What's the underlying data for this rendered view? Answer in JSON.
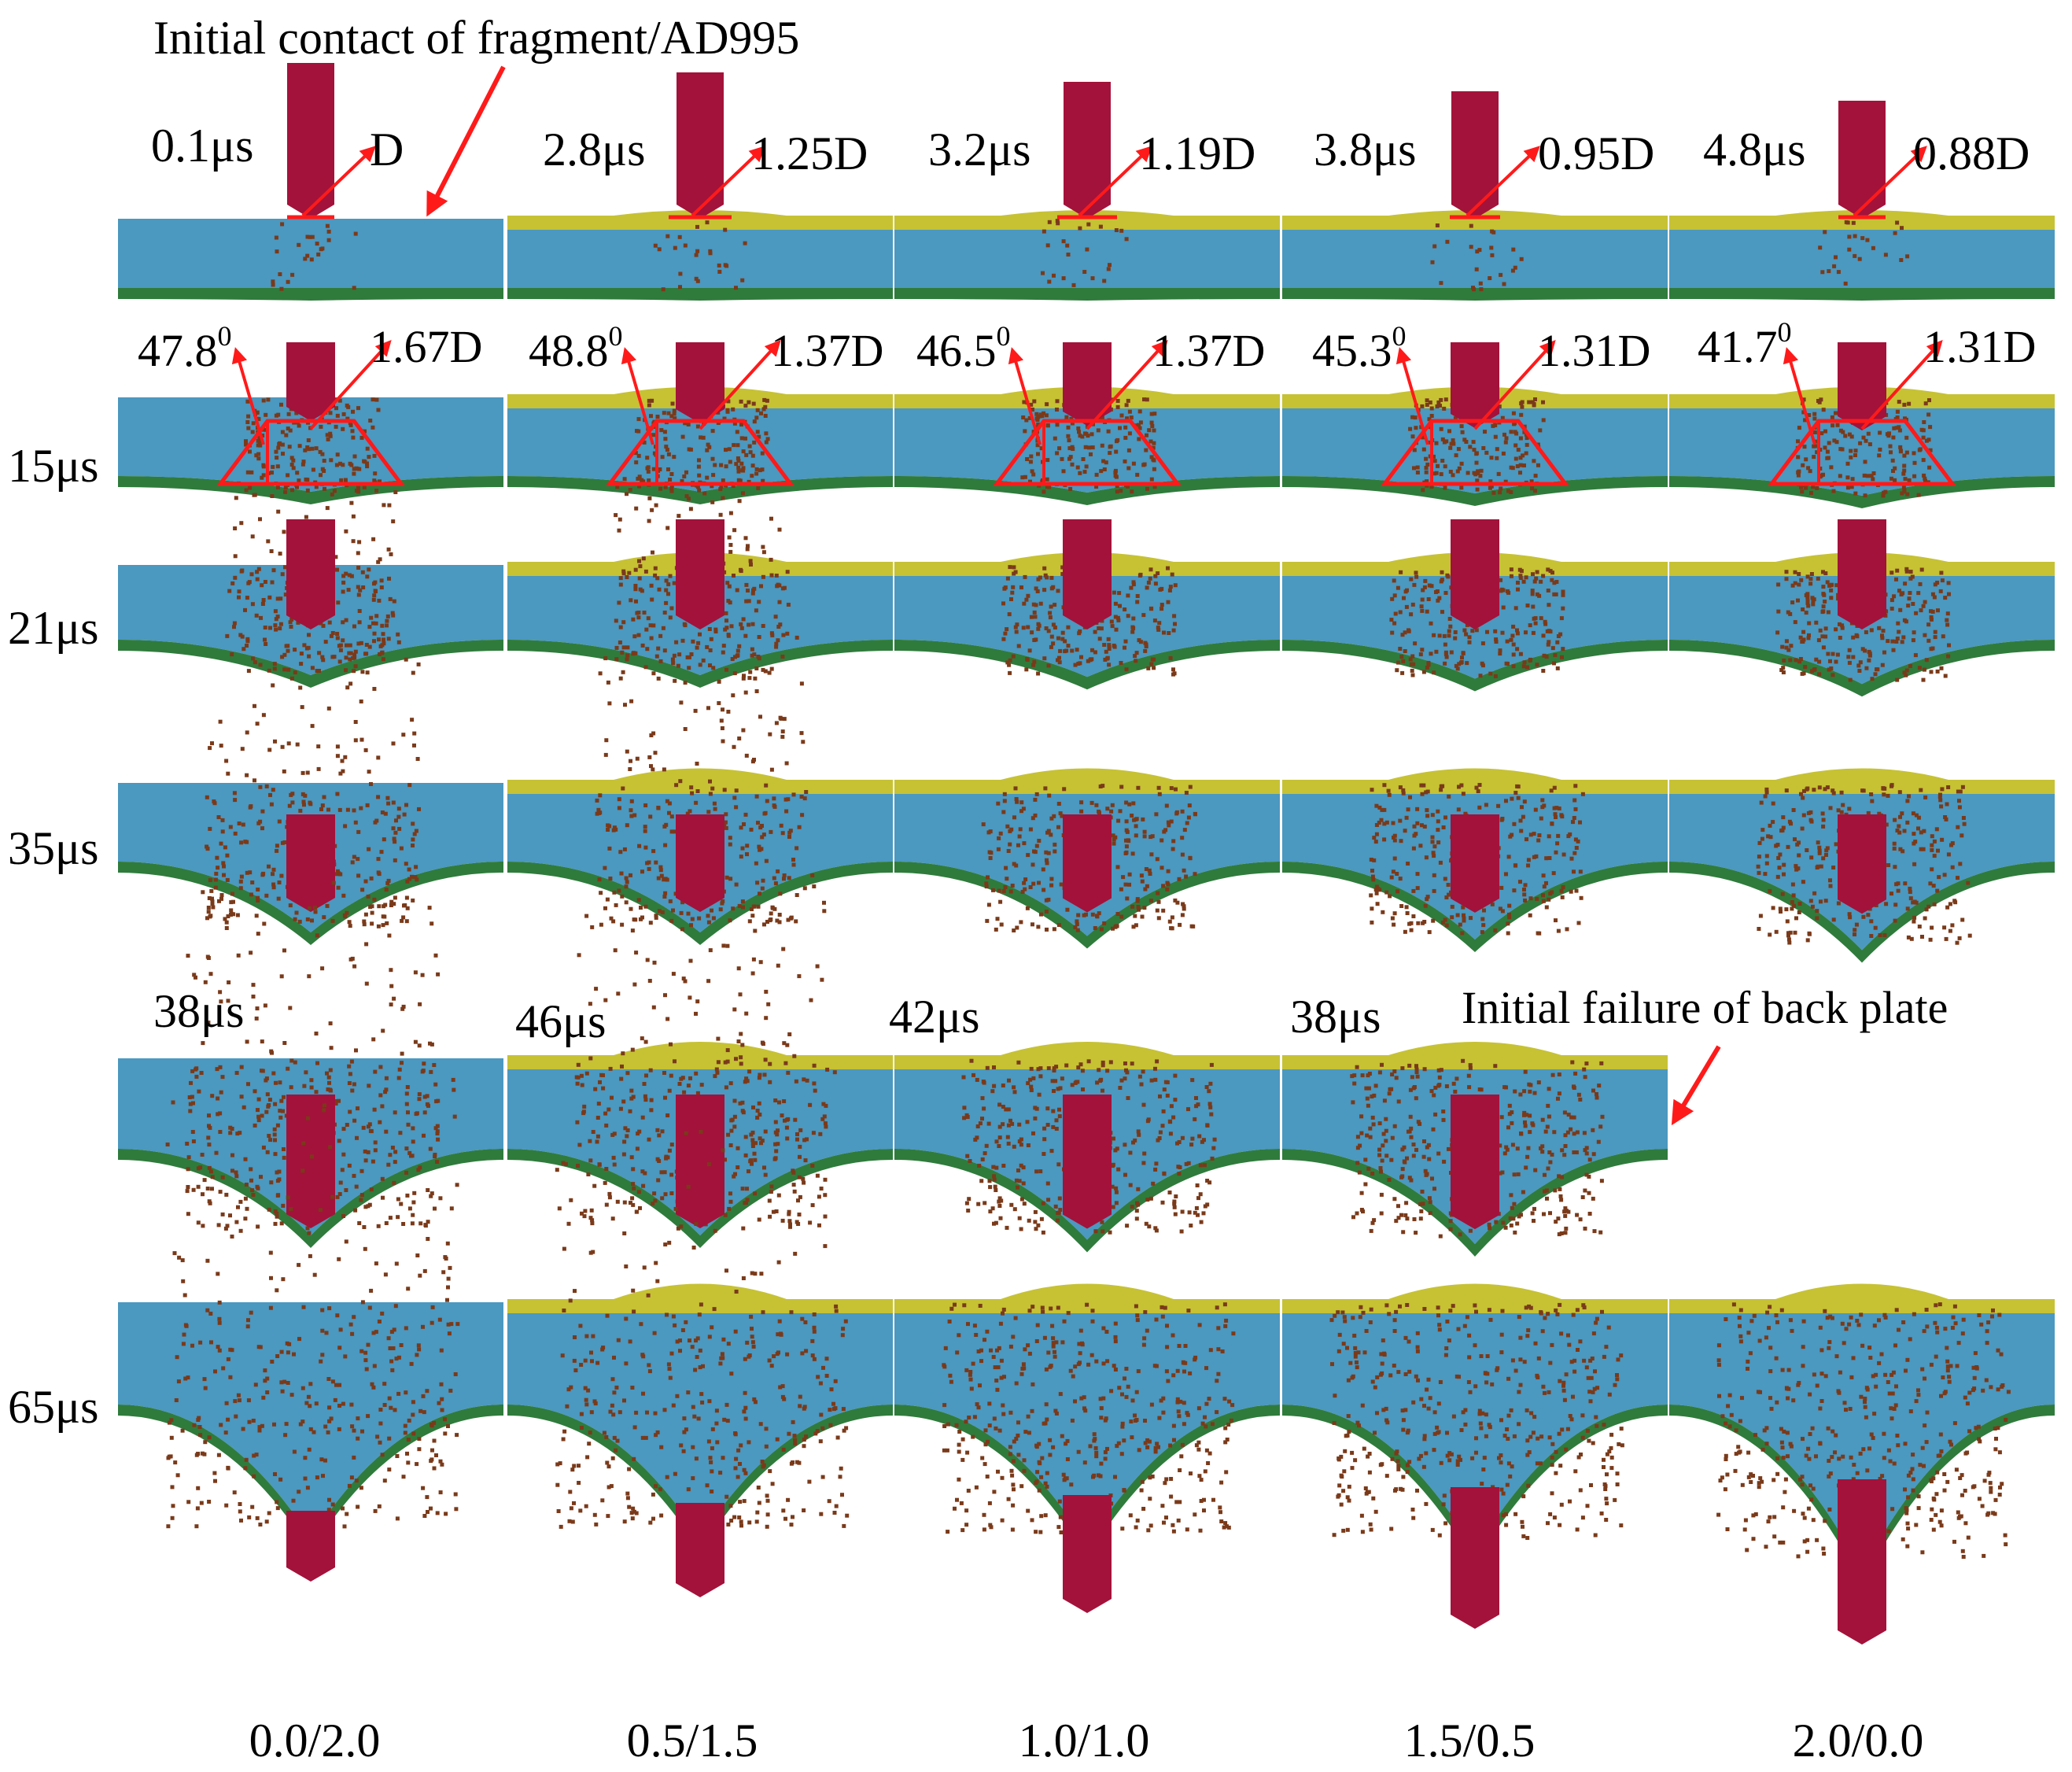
{
  "top_annotation": "Initial  contact of fragment/AD995",
  "back_plate_annotation": "Initial  failure of back plate",
  "row_labels": [
    "15μs",
    "21μs",
    "35μs",
    "65μs"
  ],
  "columns": [
    {
      "ratio": "0.0/2.0",
      "contact_time": "0.1μs",
      "contact_diameter": "D",
      "cone_angle": "47.8",
      "cone_diameter": "1.67D",
      "failure_time": "38μs"
    },
    {
      "ratio": "0.5/1.5",
      "contact_time": "2.8μs",
      "contact_diameter": "1.25D",
      "cone_angle": "48.8",
      "cone_diameter": "1.37D",
      "failure_time": "46μs"
    },
    {
      "ratio": "1.0/1.0",
      "contact_time": "3.2μs",
      "contact_diameter": "1.19D",
      "cone_angle": "46.5",
      "cone_diameter": "1.37D",
      "failure_time": "42μs"
    },
    {
      "ratio": "1.5/0.5",
      "contact_time": "3.8μs",
      "contact_diameter": "0.95D",
      "cone_angle": "45.3",
      "cone_diameter": "1.31D",
      "failure_time": "38μs"
    },
    {
      "ratio": "2.0/0.0",
      "contact_time": "4.8μs",
      "contact_diameter": "0.88D",
      "cone_angle": "41.7",
      "cone_diameter": "1.31D",
      "failure_time": ""
    }
  ],
  "degree_superscript": "0",
  "colors": {
    "ceramic": "#4b98c0",
    "front_plate": "#c6c234",
    "back_plate": "#2f7b3c",
    "fragment": "#a3123a",
    "debris": "#7a3a1a",
    "annotation": "#ff1a1a"
  }
}
